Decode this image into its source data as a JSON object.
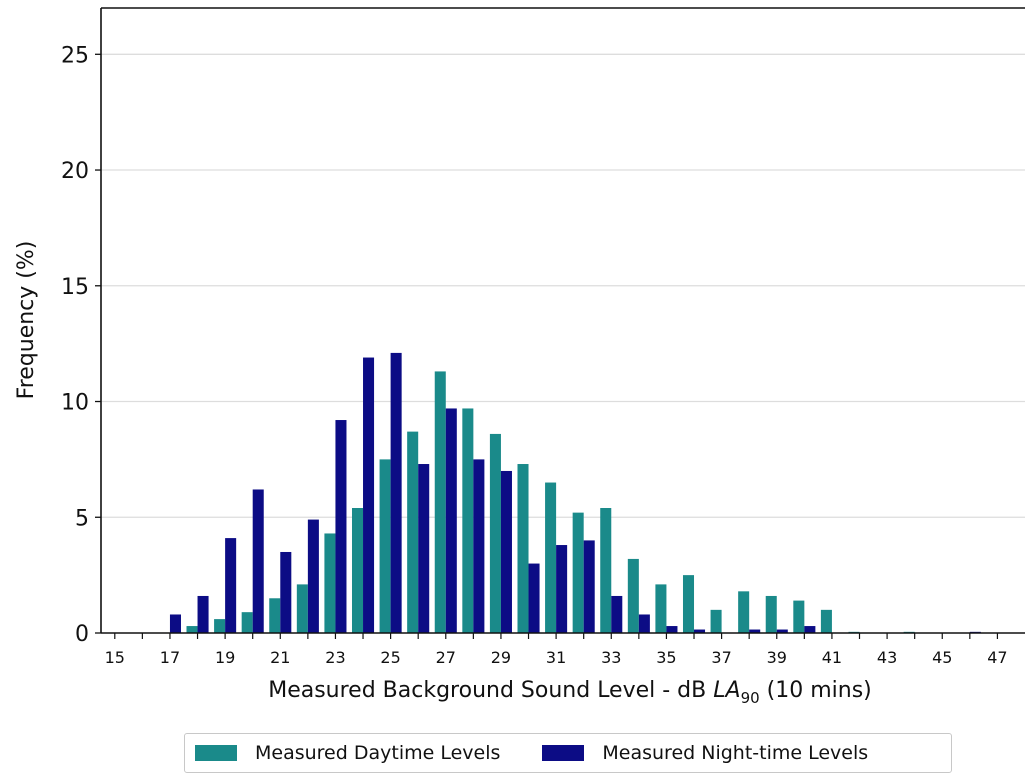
{
  "chart_data": {
    "type": "bar",
    "xlabel_prefix": "Measured Background Sound Level - dB ",
    "xlabel_italic": "LA",
    "xlabel_sub": "90",
    "xlabel_suffix": " (10 mins)",
    "ylabel": "Frequency (%)",
    "ylim": [
      0,
      27
    ],
    "yticks": [
      0,
      5,
      10,
      15,
      20,
      25
    ],
    "xlim": [
      14.5,
      48
    ],
    "xtick_labels": [
      15,
      17,
      19,
      21,
      23,
      25,
      27,
      29,
      31,
      33,
      35,
      37,
      39,
      41,
      43,
      45,
      47
    ],
    "grid": "horizontal",
    "legend_position": "bottom",
    "categories": [
      15,
      16,
      17,
      18,
      19,
      20,
      21,
      22,
      23,
      24,
      25,
      26,
      27,
      28,
      29,
      30,
      31,
      32,
      33,
      34,
      35,
      36,
      37,
      38,
      39,
      40,
      41,
      42,
      43,
      44,
      45,
      46,
      47
    ],
    "series": [
      {
        "name": "Measured Daytime Levels",
        "color": "#1a8a8a",
        "values": [
          0,
          0,
          0,
          0.3,
          0.6,
          0.9,
          1.5,
          2.1,
          4.3,
          5.4,
          7.5,
          8.7,
          11.3,
          9.7,
          8.6,
          7.3,
          6.5,
          5.2,
          5.4,
          3.2,
          2.1,
          2.5,
          1.0,
          1.8,
          1.6,
          1.4,
          1.0,
          0.05,
          0,
          0.05,
          0,
          0,
          0
        ]
      },
      {
        "name": "Measured Night-time Levels",
        "color": "#0c0c85",
        "values": [
          0,
          0,
          0.8,
          1.6,
          4.1,
          6.2,
          3.5,
          4.9,
          9.2,
          11.9,
          12.1,
          7.3,
          9.7,
          7.5,
          7.0,
          3.0,
          3.8,
          4.0,
          1.6,
          0.8,
          0.3,
          0.15,
          0,
          0.15,
          0.15,
          0.3,
          0,
          0,
          0,
          0,
          0,
          0.05,
          0
        ]
      }
    ]
  }
}
